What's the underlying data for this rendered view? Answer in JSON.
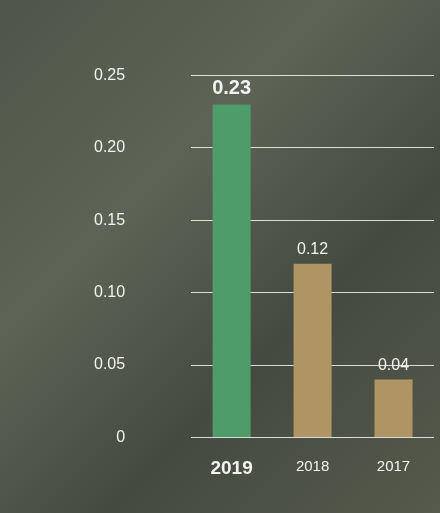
{
  "chart_data": {
    "type": "bar",
    "categories": [
      "2019",
      "2018",
      "2017"
    ],
    "values": [
      0.23,
      0.12,
      0.04
    ],
    "colors": [
      "#4e9c6a",
      "#b09564",
      "#b09564"
    ],
    "ylim": [
      0,
      0.25
    ],
    "yticks": [
      0,
      0.05,
      {
        "value": 0.1,
        "label": "0.10"
      },
      0.15,
      {
        "value": 0.2,
        "label": "0.20"
      },
      0.25
    ],
    "grid": true,
    "data_labels": true
  }
}
